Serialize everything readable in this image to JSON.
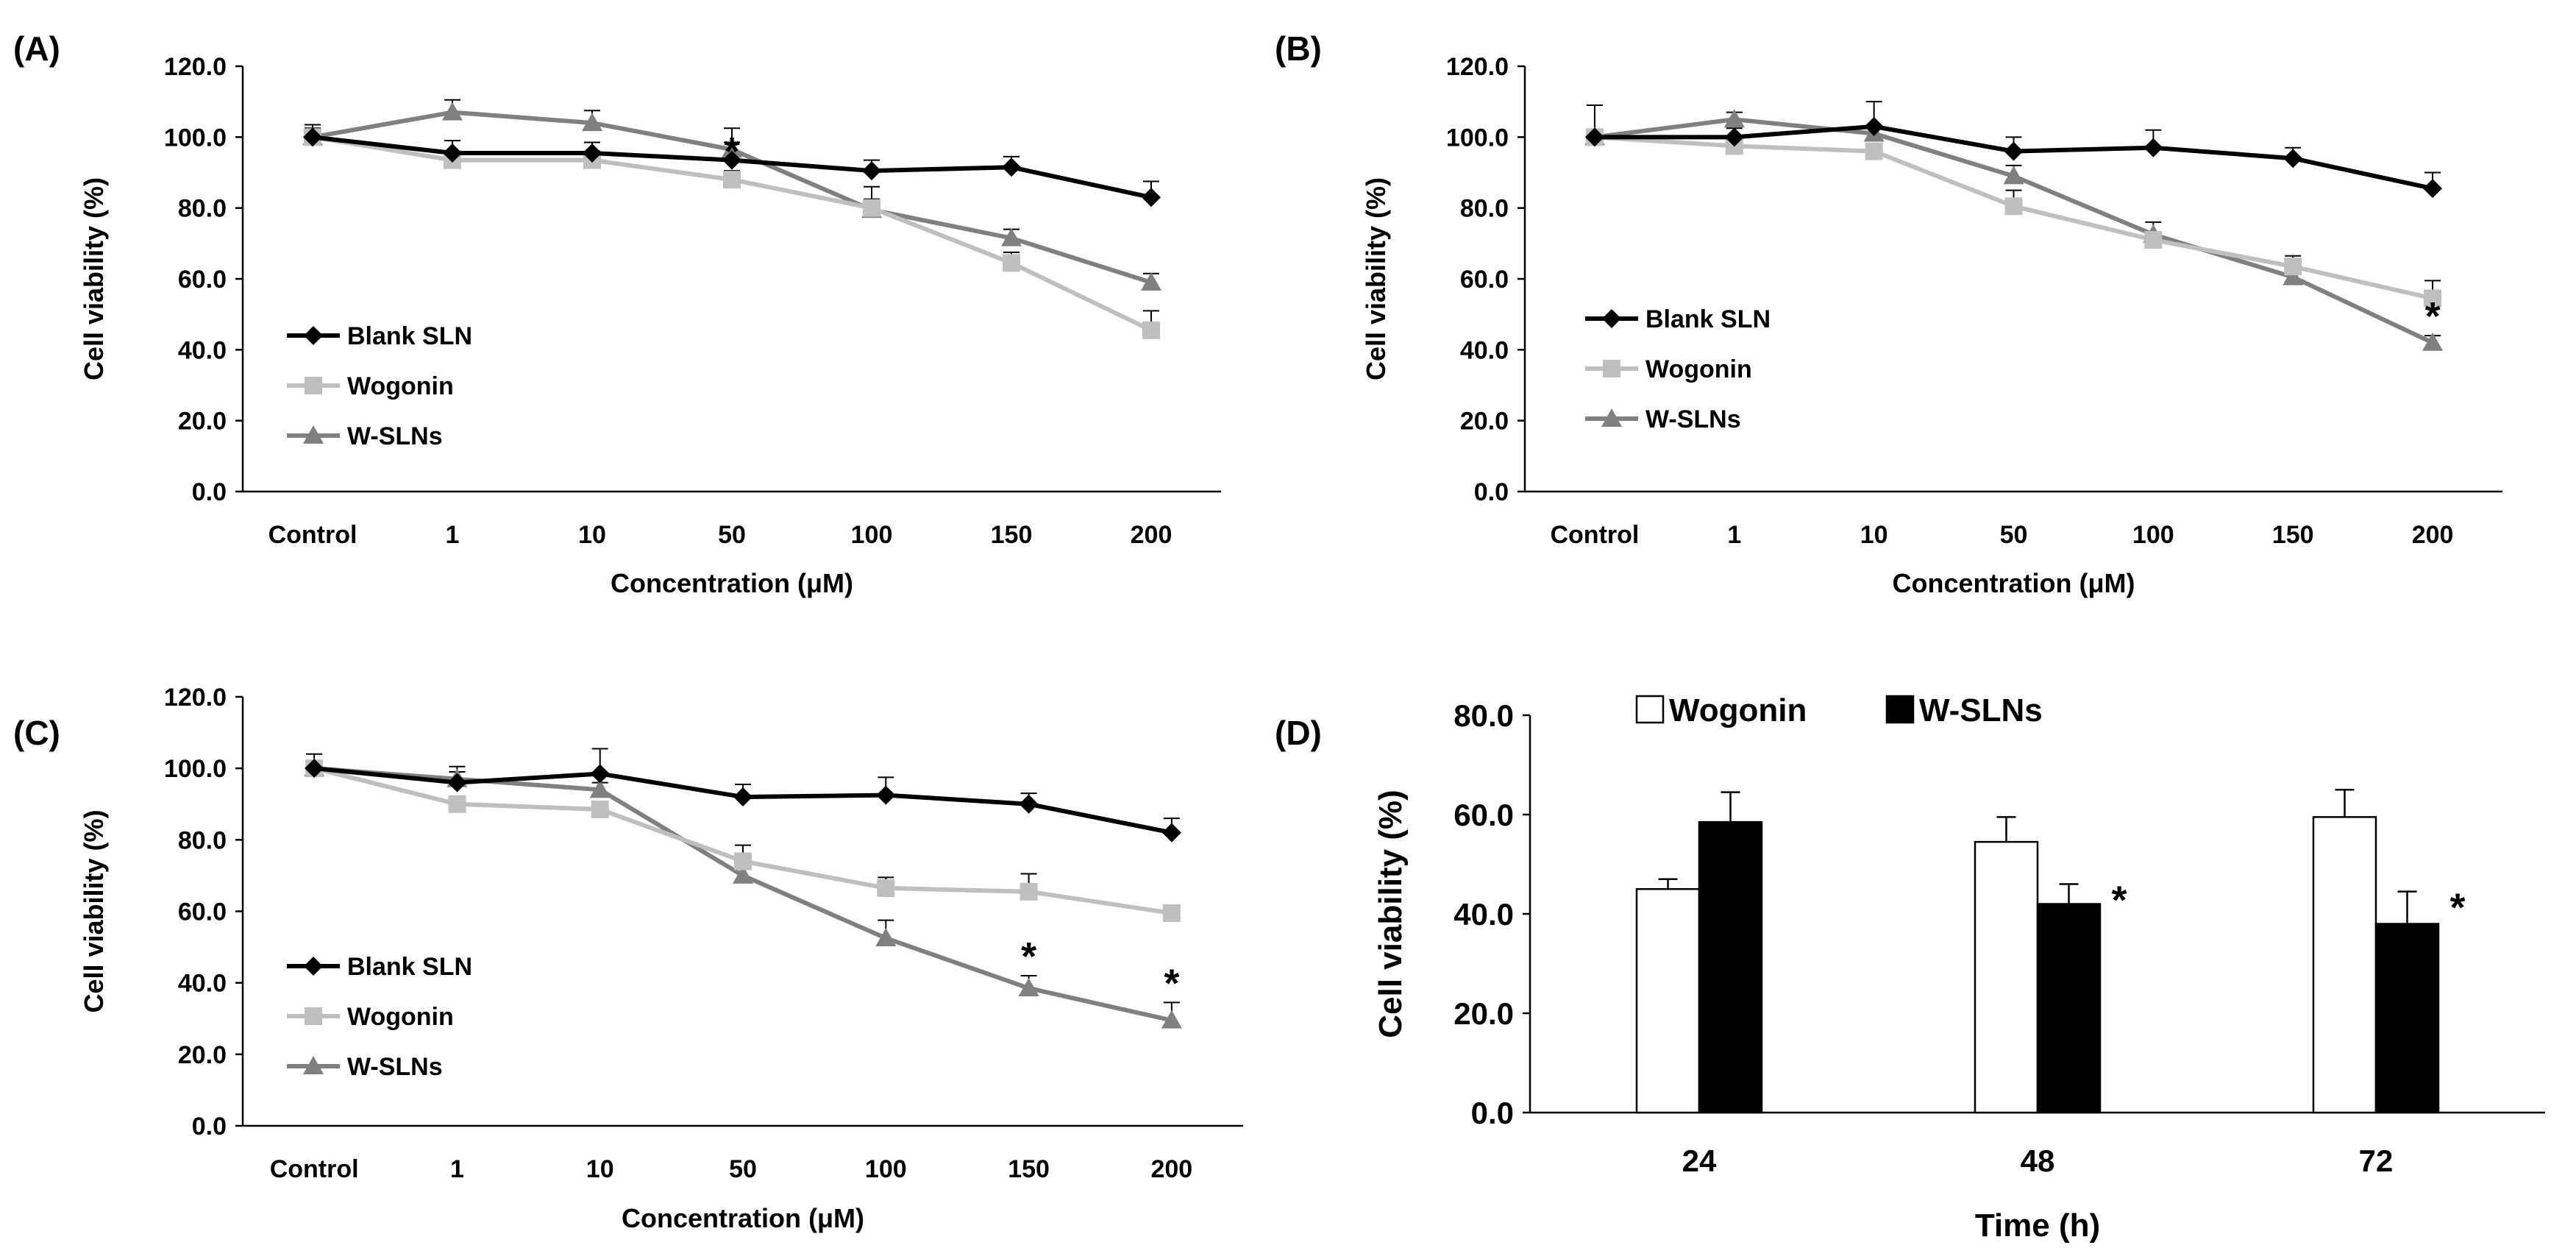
{
  "chart_data": [
    {
      "type": "line",
      "panel_label": "(A)",
      "categories": [
        "Control",
        "1",
        "10",
        "50",
        "100",
        "150",
        "200"
      ],
      "xlabel": "Concentration (μM)",
      "ylabel": "Cell viability (%)",
      "ylim": [
        0,
        120
      ],
      "yticks": [
        "0.0",
        "20.0",
        "40.0",
        "60.0",
        "80.0",
        "100.0",
        "120.0"
      ],
      "grid": false,
      "legend_position": "lower-left",
      "series": [
        {
          "name": "Blank SLN",
          "color": "#000000",
          "marker": "diamond",
          "values": [
            100.0,
            95.5,
            95.5,
            93.5,
            90.5,
            91.5,
            83.0
          ],
          "errors": [
            3.5,
            3.5,
            3.0,
            5.0,
            3.0,
            3.0,
            4.5
          ]
        },
        {
          "name": "Wogonin",
          "color": "#bfbfbf",
          "marker": "square",
          "values": [
            100.0,
            93.5,
            93.5,
            88.0,
            80.0,
            64.5,
            45.5
          ],
          "errors": [
            2.0,
            2.5,
            2.5,
            2.5,
            6.0,
            3.0,
            5.5
          ]
        },
        {
          "name": "W-SLNs",
          "color": "#808080",
          "marker": "triangle",
          "values": [
            100.0,
            107.0,
            104.0,
            96.5,
            79.5,
            71.5,
            59.0
          ],
          "errors": [
            2.5,
            3.5,
            3.5,
            6.0,
            3.0,
            2.5,
            2.5
          ]
        }
      ],
      "annotations": [
        {
          "category": "50",
          "text": "*"
        }
      ]
    },
    {
      "type": "line",
      "panel_label": "(B)",
      "categories": [
        "Control",
        "1",
        "10",
        "50",
        "100",
        "150",
        "200"
      ],
      "xlabel": "Concentration (μM)",
      "ylabel": "Cell viability (%)",
      "ylim": [
        0,
        120
      ],
      "yticks": [
        "0.0",
        "20.0",
        "40.0",
        "60.0",
        "80.0",
        "100.0",
        "120.0"
      ],
      "grid": false,
      "legend_position": "lower-left",
      "series": [
        {
          "name": "Blank SLN",
          "color": "#000000",
          "marker": "diamond",
          "values": [
            100.0,
            100.0,
            103.0,
            96.0,
            97.0,
            94.0,
            85.5
          ],
          "errors": [
            9.0,
            2.5,
            7.0,
            4.0,
            5.0,
            3.0,
            4.5
          ]
        },
        {
          "name": "Wogonin",
          "color": "#bfbfbf",
          "marker": "square",
          "values": [
            100.0,
            97.5,
            96.0,
            80.5,
            71.0,
            63.5,
            54.5
          ],
          "errors": [
            2.0,
            2.0,
            2.0,
            4.5,
            2.0,
            3.0,
            5.0
          ]
        },
        {
          "name": "W-SLNs",
          "color": "#808080",
          "marker": "triangle",
          "values": [
            100.0,
            105.0,
            101.0,
            89.0,
            72.5,
            60.5,
            42.0
          ],
          "errors": [
            2.0,
            2.0,
            2.0,
            3.0,
            3.5,
            2.0,
            2.0
          ]
        }
      ],
      "annotations": [
        {
          "category": "200",
          "text": "*"
        }
      ]
    },
    {
      "type": "line",
      "panel_label": "(C)",
      "categories": [
        "Control",
        "1",
        "10",
        "50",
        "100",
        "150",
        "200"
      ],
      "xlabel": "Concentration (μM)",
      "ylabel": "Cell viability (%)",
      "ylim": [
        0,
        120
      ],
      "yticks": [
        "0.0",
        "20.0",
        "40.0",
        "60.0",
        "80.0",
        "100.0",
        "120.0"
      ],
      "grid": false,
      "legend_position": "lower-left",
      "series": [
        {
          "name": "Blank SLN",
          "color": "#000000",
          "marker": "diamond",
          "values": [
            100.0,
            96.0,
            98.5,
            92.0,
            92.5,
            90.0,
            82.0
          ],
          "errors": [
            4.0,
            4.5,
            7.0,
            3.5,
            5.0,
            3.0,
            4.0
          ]
        },
        {
          "name": "Wogonin",
          "color": "#bfbfbf",
          "marker": "square",
          "values": [
            100.0,
            90.0,
            88.5,
            74.0,
            66.5,
            65.5,
            59.5
          ],
          "errors": [
            2.0,
            2.0,
            2.0,
            4.5,
            3.0,
            5.0,
            2.0
          ]
        },
        {
          "name": "W-SLNs",
          "color": "#808080",
          "marker": "triangle",
          "values": [
            100.0,
            97.0,
            94.0,
            70.0,
            52.5,
            38.5,
            29.5
          ],
          "errors": [
            2.0,
            2.0,
            2.0,
            2.0,
            5.0,
            3.5,
            5.0
          ]
        }
      ],
      "annotations": [
        {
          "category": "150",
          "text": "*"
        },
        {
          "category": "200",
          "text": "*"
        }
      ]
    },
    {
      "type": "bar",
      "panel_label": "(D)",
      "categories": [
        "24",
        "48",
        "72"
      ],
      "xlabel": "Time (h)",
      "ylabel": "Cell viability (%)",
      "ylim": [
        0,
        80
      ],
      "yticks": [
        "0.0",
        "20.0",
        "40.0",
        "60.0",
        "80.0"
      ],
      "grid": false,
      "legend_position": "top",
      "series": [
        {
          "name": "Wogonin",
          "color": "#ffffff",
          "values": [
            45.0,
            54.5,
            59.5
          ],
          "errors": [
            2.0,
            5.0,
            5.5
          ]
        },
        {
          "name": "W-SLNs",
          "color": "#000000",
          "values": [
            58.5,
            42.0,
            38.0
          ],
          "errors": [
            6.0,
            4.0,
            6.5
          ]
        }
      ],
      "annotations": [
        {
          "category": "48",
          "text": "*"
        },
        {
          "category": "72",
          "text": "*"
        }
      ]
    }
  ]
}
